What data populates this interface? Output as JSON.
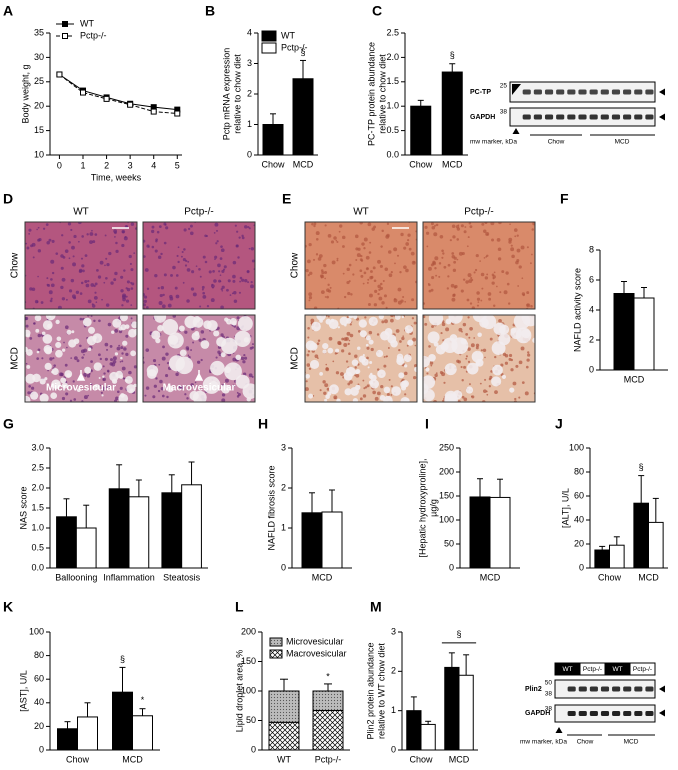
{
  "chart_data": [
    {
      "type": "line",
      "label": "A",
      "x": [
        0,
        1,
        2,
        3,
        4,
        5
      ],
      "xlim": [
        -0.4,
        5.2
      ],
      "xticks": [
        0,
        1,
        2,
        3,
        4,
        5
      ],
      "ylim": [
        10,
        35
      ],
      "yticks": [
        10,
        15,
        20,
        25,
        30,
        35
      ],
      "x_label": "Time, weeks",
      "y_label": [
        "Body weight, g"
      ],
      "series": [
        {
          "name": "WT",
          "color": "#000000",
          "line_style": "solid",
          "values": [
            26.5,
            23.2,
            21.8,
            20.5,
            19.8,
            19.3
          ]
        },
        {
          "name": "Pctp-/-",
          "color": "#ffffff",
          "line_style": "dashed",
          "values": [
            26.5,
            22.8,
            21.5,
            20.3,
            18.9,
            18.5
          ]
        }
      ]
    },
    {
      "type": "bar",
      "label": "B",
      "categories": [
        "Chow",
        "MCD"
      ],
      "values": [
        1.0,
        2.5
      ],
      "errors": [
        0.35,
        0.6
      ],
      "color": "#000000",
      "ylim": [
        0,
        4
      ],
      "yticks": [
        0,
        1,
        2,
        3,
        4
      ],
      "y_label": [
        "Pctp mRNA expression",
        "relative to chow diet"
      ],
      "legend": [
        {
          "name": "WT",
          "color": "#000000"
        },
        {
          "name": "Pctp-/-",
          "color": "#ffffff"
        }
      ],
      "annotations": [
        "§"
      ]
    },
    {
      "type": "bar",
      "label": "C",
      "categories": [
        "Chow",
        "MCD"
      ],
      "values": [
        1.0,
        1.7
      ],
      "errors": [
        0.12,
        0.17
      ],
      "color": "#000000",
      "ylim": [
        0,
        2.5
      ],
      "yticks": [
        {
          "value": 0,
          "label": "0.0"
        },
        {
          "value": 0.5,
          "label": "0.5"
        },
        {
          "value": 1,
          "label": "1.0"
        },
        {
          "value": 1.5,
          "label": "1.5"
        },
        {
          "value": 2,
          "label": "2.0"
        },
        {
          "value": 2.5,
          "label": "2.5"
        }
      ],
      "y_label": [
        "PC-TP protein abundance",
        "relative to chow diet"
      ],
      "annotations": [
        "§"
      ]
    },
    {
      "type": "bar",
      "label": "F",
      "categories": [
        "MCD"
      ],
      "ylim": [
        0,
        8
      ],
      "yticks": [
        0,
        2,
        4,
        6,
        8
      ],
      "y_label": [
        "NAFLD activity score"
      ],
      "series": [
        {
          "color": "#000000",
          "values": [
            5.1
          ],
          "errors": [
            0.8
          ]
        },
        {
          "color": "#ffffff",
          "values": [
            4.8
          ],
          "errors": [
            0.7
          ]
        }
      ]
    },
    {
      "type": "bar",
      "label": "G",
      "categories": [
        "Ballooning",
        "Inflammation",
        "Steatosis"
      ],
      "ylim": [
        0,
        3
      ],
      "yticks": [
        {
          "value": 0,
          "label": "0.0"
        },
        {
          "value": 0.5,
          "label": "0.5"
        },
        {
          "value": 1,
          "label": "1.0"
        },
        {
          "value": 1.5,
          "label": "1.5"
        },
        {
          "value": 2,
          "label": "2.0"
        },
        {
          "value": 2.5,
          "label": "2.5"
        },
        {
          "value": 3,
          "label": "3.0"
        }
      ],
      "y_label": [
        "NAS score"
      ],
      "series": [
        {
          "color": "#000000",
          "values": [
            1.28,
            1.98,
            1.88
          ],
          "errors": [
            0.45,
            0.6,
            0.45
          ]
        },
        {
          "color": "#ffffff",
          "values": [
            1.0,
            1.78,
            2.08
          ],
          "errors": [
            0.57,
            0.42,
            0.57
          ]
        }
      ]
    },
    {
      "type": "bar",
      "label": "H",
      "categories": [
        "MCD"
      ],
      "ylim": [
        0,
        3
      ],
      "yticks": [
        0,
        1,
        2,
        3
      ],
      "y_label": [
        "NAFLD fibrosis score"
      ],
      "series": [
        {
          "color": "#000000",
          "values": [
            1.38
          ],
          "errors": [
            0.5
          ]
        },
        {
          "color": "#ffffff",
          "values": [
            1.4
          ],
          "errors": [
            0.55
          ]
        }
      ]
    },
    {
      "type": "bar",
      "label": "I",
      "categories": [
        "MCD"
      ],
      "ylim": [
        0,
        250
      ],
      "yticks": [
        0,
        50,
        100,
        150,
        200,
        250
      ],
      "y_label": [
        "[Hepatic hydroxyproline],",
        "µg/g"
      ],
      "series": [
        {
          "color": "#000000",
          "values": [
            148
          ],
          "errors": [
            38
          ]
        },
        {
          "color": "#ffffff",
          "values": [
            147
          ],
          "errors": [
            38
          ]
        }
      ]
    },
    {
      "type": "bar",
      "label": "J",
      "categories": [
        "Chow",
        "MCD"
      ],
      "ylim": [
        0,
        100
      ],
      "yticks": [
        0,
        20,
        40,
        60,
        80,
        100
      ],
      "y_label": [
        "[ALT], U/L"
      ],
      "series": [
        {
          "color": "#000000",
          "values": [
            15,
            54
          ],
          "errors": [
            3,
            23
          ]
        },
        {
          "color": "#ffffff",
          "values": [
            19,
            38
          ],
          "errors": [
            7,
            20
          ]
        }
      ],
      "annotations": [
        "§"
      ]
    },
    {
      "type": "bar",
      "label": "K",
      "categories": [
        "Chow",
        "MCD"
      ],
      "ylim": [
        0,
        100
      ],
      "yticks": [
        0,
        20,
        40,
        60,
        80,
        100
      ],
      "y_label": [
        "[AST], U/L"
      ],
      "series": [
        {
          "color": "#000000",
          "values": [
            18,
            49
          ],
          "errors": [
            6,
            21
          ]
        },
        {
          "color": "#ffffff",
          "values": [
            28,
            29
          ],
          "errors": [
            12,
            6
          ]
        }
      ],
      "annotations": [
        "§",
        "*"
      ]
    },
    {
      "type": "stacked_bar",
      "label": "L",
      "categories": [
        "WT",
        "Pctp-/-"
      ],
      "ylim": [
        0,
        200
      ],
      "yticks": [
        0,
        50,
        100,
        150,
        200
      ],
      "y_label": [
        "Lipid droplet area, %"
      ],
      "series": [
        {
          "name": "Macrovesicular",
          "pattern": "crosshatch",
          "values": [
            47,
            67
          ],
          "errors": [
            20,
            10
          ]
        },
        {
          "name": "Microvesicular",
          "pattern": "dots",
          "values": [
            53,
            33
          ],
          "errors": [
            20,
            12
          ]
        }
      ],
      "annotations": [
        "*"
      ]
    },
    {
      "type": "bar",
      "label": "M",
      "categories": [
        "Chow",
        "MCD"
      ],
      "ylim": [
        0,
        3
      ],
      "yticks": [
        0,
        1,
        2,
        3
      ],
      "y_label": [
        "Plin2 protein abundance",
        "relative to WT chow diet"
      ],
      "series": [
        {
          "color": "#000000",
          "values": [
            1.0,
            2.1
          ],
          "errors": [
            0.35,
            0.37
          ]
        },
        {
          "color": "#ffffff",
          "values": [
            0.65,
            1.9
          ],
          "errors": [
            0.08,
            0.52
          ]
        }
      ],
      "annotations": [
        "§"
      ]
    }
  ],
  "histology": [
    {
      "label": "D",
      "columns": [
        "WT",
        "Pctp-/-"
      ],
      "rows": [
        "Chow",
        "MCD"
      ],
      "annotations": [
        "Microvesicular",
        "Macrovesicular"
      ]
    },
    {
      "label": "E",
      "columns": [
        "WT",
        "Pctp-/-"
      ],
      "rows": [
        "Chow",
        "MCD"
      ]
    }
  ],
  "blots": [
    {
      "labels": [
        "PC-TP",
        "GAPDH"
      ],
      "mw": [
        "25",
        "38"
      ],
      "marker": "mw marker, kDa",
      "groups": [
        "Chow",
        "MCD"
      ]
    },
    {
      "headers": [
        "WT",
        "Pctp-/-",
        "WT",
        "Pctp-/-"
      ],
      "labels": [
        "Plin2",
        "GAPDH"
      ],
      "mw": [
        "50",
        "38",
        "38"
      ],
      "marker": "mw marker, kDa",
      "groups": [
        "Chow",
        "MCD"
      ]
    }
  ]
}
